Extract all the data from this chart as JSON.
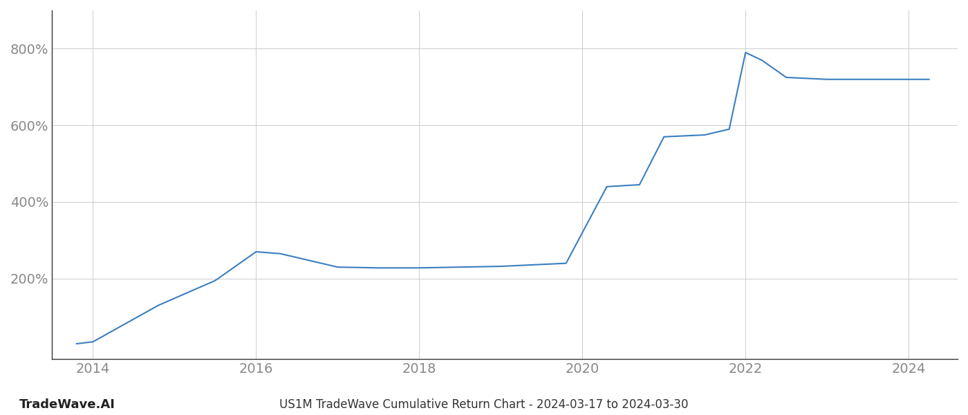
{
  "x_values": [
    2013.8,
    2014.0,
    2014.8,
    2015.5,
    2016.0,
    2016.3,
    2017.0,
    2017.5,
    2018.0,
    2018.5,
    2019.0,
    2019.3,
    2019.8,
    2020.3,
    2020.7,
    2021.0,
    2021.5,
    2021.8,
    2022.0,
    2022.2,
    2022.5,
    2023.0,
    2023.5,
    2024.0,
    2024.25
  ],
  "y_values": [
    30,
    35,
    130,
    195,
    270,
    265,
    230,
    228,
    228,
    230,
    232,
    235,
    240,
    440,
    445,
    570,
    575,
    590,
    790,
    770,
    725,
    720,
    720,
    720,
    720
  ],
  "line_color": "#3a7ebf",
  "line_width": 1.5,
  "title": "US1M TradeWave Cumulative Return Chart - 2024-03-17 to 2024-03-30",
  "watermark": "TradeWave.AI",
  "background_color": "#ffffff",
  "grid_color": "#cccccc",
  "ytick_labels": [
    "200%",
    "400%",
    "600%",
    "800%"
  ],
  "ytick_values": [
    200,
    400,
    600,
    800
  ],
  "xtick_labels": [
    "2014",
    "2016",
    "2018",
    "2020",
    "2022",
    "2024"
  ],
  "xtick_values": [
    2014,
    2016,
    2018,
    2020,
    2022,
    2024
  ],
  "xlim": [
    2013.5,
    2024.6
  ],
  "ylim": [
    -10,
    900
  ],
  "tick_color": "#888888",
  "tick_fontsize": 14,
  "title_fontsize": 12,
  "watermark_fontsize": 13,
  "spine_color": "#333333"
}
